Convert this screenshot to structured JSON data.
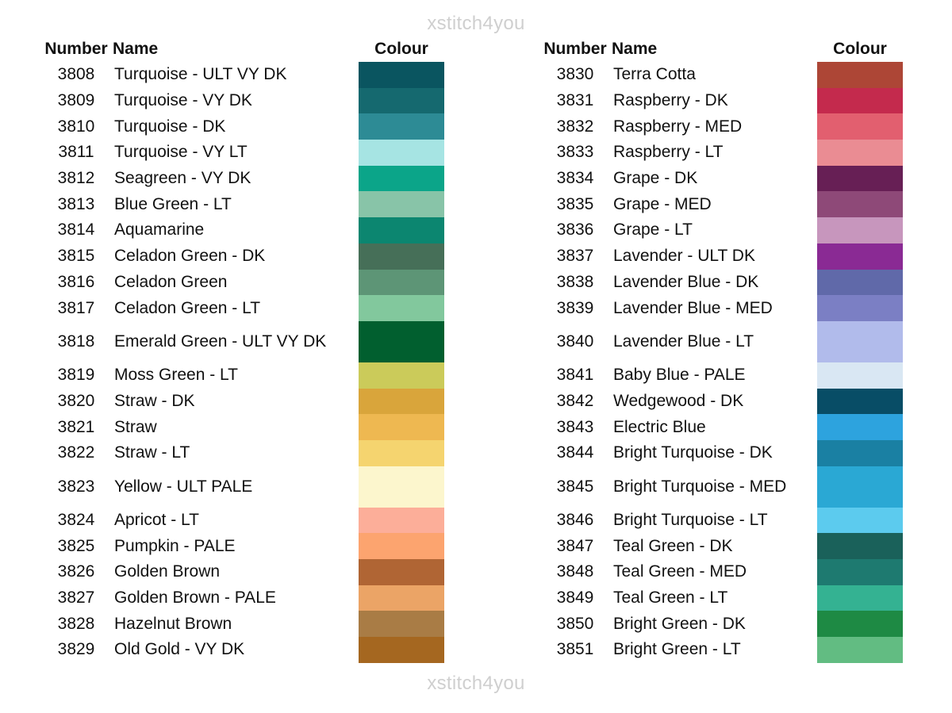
{
  "watermark": "xstitch4you",
  "headers": {
    "number": "Number",
    "name": "Name",
    "colour": "Colour"
  },
  "left": [
    {
      "number": "3808",
      "name": "Turquoise - ULT VY DK",
      "color": "#0a5560"
    },
    {
      "number": "3809",
      "name": "Turquoise - VY DK",
      "color": "#15696f"
    },
    {
      "number": "3810",
      "name": "Turquoise - DK",
      "color": "#2d8b95"
    },
    {
      "number": "3811",
      "name": "Turquoise - VY LT",
      "color": "#a6e4e3"
    },
    {
      "number": "3812",
      "name": "Seagreen - VY DK",
      "color": "#0ba589"
    },
    {
      "number": "3813",
      "name": "Blue Green - LT",
      "color": "#88c4a8"
    },
    {
      "number": "3814",
      "name": "Aquamarine",
      "color": "#0c8670"
    },
    {
      "number": "3815",
      "name": "Celadon Green - DK",
      "color": "#466f58"
    },
    {
      "number": "3816",
      "name": "Celadon Green",
      "color": "#5d9576"
    },
    {
      "number": "3817",
      "name": "Celadon Green - LT",
      "color": "#82c89d"
    },
    {
      "number": "3818",
      "name": "Emerald Green - ULT VY DK",
      "color": "#015f2f",
      "tall": true
    },
    {
      "number": "3819",
      "name": "Moss Green - LT",
      "color": "#cbcb5a"
    },
    {
      "number": "3820",
      "name": "Straw - DK",
      "color": "#d9a53b"
    },
    {
      "number": "3821",
      "name": "Straw",
      "color": "#eeb851"
    },
    {
      "number": "3822",
      "name": "Straw - LT",
      "color": "#f5d46f"
    },
    {
      "number": "3823",
      "name": "Yellow - ULT PALE",
      "color": "#fcf6cd",
      "tall": true
    },
    {
      "number": "3824",
      "name": "Apricot - LT",
      "color": "#fcae99"
    },
    {
      "number": "3825",
      "name": "Pumpkin - PALE",
      "color": "#fca46f"
    },
    {
      "number": "3826",
      "name": "Golden Brown",
      "color": "#b06534"
    },
    {
      "number": "3827",
      "name": "Golden Brown - PALE",
      "color": "#eba466"
    },
    {
      "number": "3828",
      "name": "Hazelnut Brown",
      "color": "#a97c45"
    },
    {
      "number": "3829",
      "name": "Old Gold - VY DK",
      "color": "#a56720"
    }
  ],
  "right": [
    {
      "number": "3830",
      "name": "Terra Cotta",
      "color": "#ad4636"
    },
    {
      "number": "3831",
      "name": "Raspberry - DK",
      "color": "#c42a4d"
    },
    {
      "number": "3832",
      "name": "Raspberry - MED",
      "color": "#e25f6f"
    },
    {
      "number": "3833",
      "name": "Raspberry - LT",
      "color": "#ea8c93"
    },
    {
      "number": "3834",
      "name": "Grape - DK",
      "color": "#671f55"
    },
    {
      "number": "3835",
      "name": "Grape - MED",
      "color": "#8e4978"
    },
    {
      "number": "3836",
      "name": "Grape - LT",
      "color": "#c796bd"
    },
    {
      "number": "3837",
      "name": "Lavender - ULT DK",
      "color": "#8a2a94"
    },
    {
      "number": "3838",
      "name": "Lavender Blue - DK",
      "color": "#6069a9"
    },
    {
      "number": "3839",
      "name": "Lavender Blue - MED",
      "color": "#7b7fc4"
    },
    {
      "number": "3840",
      "name": "Lavender Blue - LT",
      "color": "#b1bbeb",
      "tall": true
    },
    {
      "number": "3841",
      "name": "Baby Blue - PALE",
      "color": "#d9e7f3"
    },
    {
      "number": "3842",
      "name": "Wedgewood - DK",
      "color": "#084d66"
    },
    {
      "number": "3843",
      "name": "Electric Blue",
      "color": "#2da3de"
    },
    {
      "number": "3844",
      "name": "Bright Turquoise - DK",
      "color": "#1a80a3"
    },
    {
      "number": "3845",
      "name": "Bright Turquoise - MED",
      "color": "#2aa8d4",
      "tall": true
    },
    {
      "number": "3846",
      "name": "Bright Turquoise - LT",
      "color": "#5ccbee"
    },
    {
      "number": "3847",
      "name": "Teal Green - DK",
      "color": "#1a615a"
    },
    {
      "number": "3848",
      "name": "Teal Green - MED",
      "color": "#1e7a70"
    },
    {
      "number": "3849",
      "name": "Teal Green - LT",
      "color": "#34b292"
    },
    {
      "number": "3850",
      "name": "Bright Green - DK",
      "color": "#1e8a44"
    },
    {
      "number": "3851",
      "name": "Bright Green - LT",
      "color": "#62bc82"
    }
  ]
}
